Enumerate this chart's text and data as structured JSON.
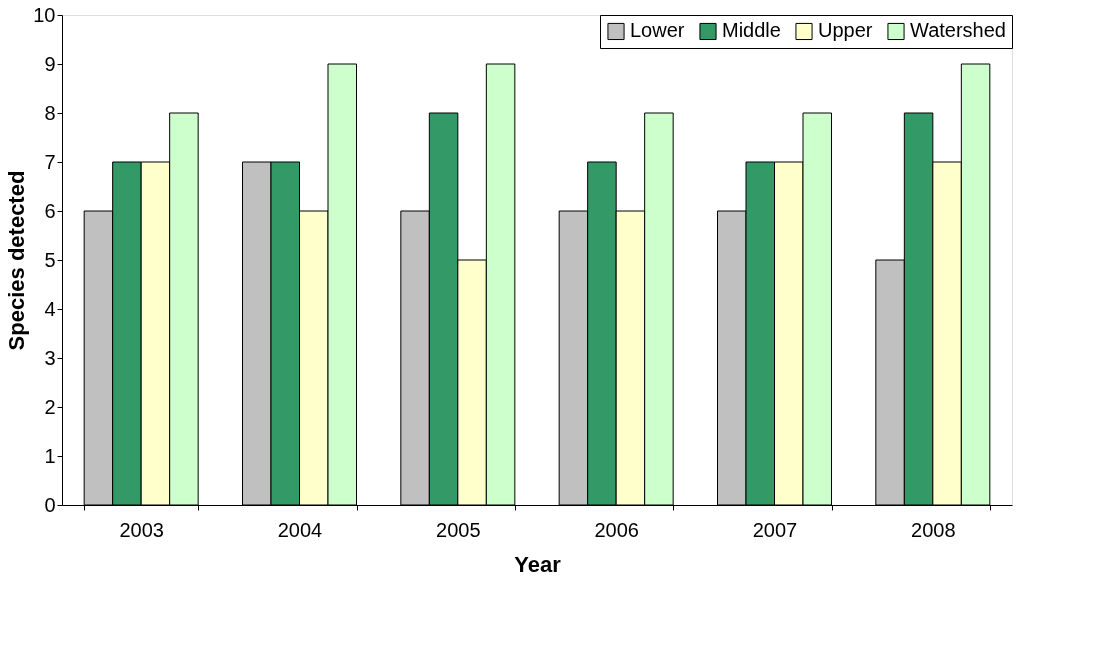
{
  "chart_data": {
    "type": "bar",
    "xlabel": "Year",
    "ylabel": "Species detected",
    "categories": [
      "2003",
      "2004",
      "2005",
      "2006",
      "2007",
      "2008"
    ],
    "series": [
      {
        "name": "Lower",
        "color": "#c0c0c0",
        "values": [
          6,
          7,
          6,
          6,
          6,
          5
        ]
      },
      {
        "name": "Middle",
        "color": "#339966",
        "values": [
          7,
          7,
          8,
          7,
          7,
          8
        ]
      },
      {
        "name": "Upper",
        "color": "#ffffcc",
        "values": [
          7,
          6,
          5,
          6,
          7,
          7
        ]
      },
      {
        "name": "Watershed",
        "color": "#ccffcc",
        "values": [
          8,
          9,
          9,
          8,
          8,
          9
        ]
      }
    ],
    "ylim": [
      0,
      10
    ],
    "yticks": [
      0,
      1,
      2,
      3,
      4,
      5,
      6,
      7,
      8,
      9,
      10
    ],
    "grid": false,
    "legend": "top right"
  }
}
